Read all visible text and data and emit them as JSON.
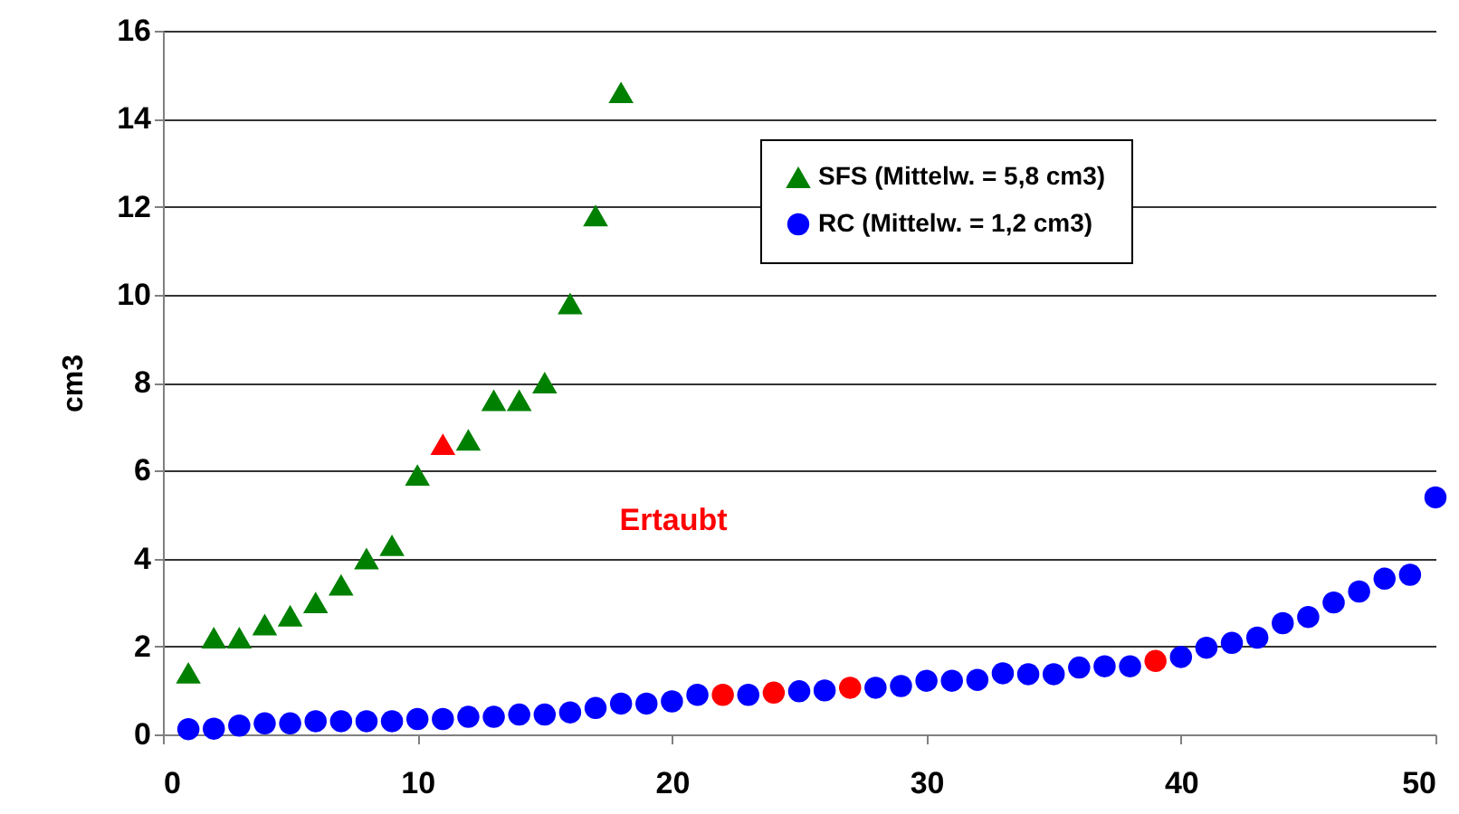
{
  "chart_data": {
    "type": "scatter",
    "ylabel": "cm3",
    "xlim": [
      0,
      50
    ],
    "xticks": [
      0,
      10,
      20,
      30,
      40,
      50
    ],
    "ylim": [
      0,
      16
    ],
    "yticks": [
      0,
      2,
      4,
      6,
      8,
      10,
      12,
      14,
      16
    ],
    "grid": "y",
    "legend": "top right",
    "annotations": [
      "Ertaubt"
    ],
    "series": [
      {
        "name": "SFS (Mittelw. = 5,8 cm3)",
        "color": "#008000",
        "marker": "triangle",
        "x": [
          1,
          2,
          3,
          4,
          5,
          6,
          7,
          8,
          9,
          10,
          11,
          12,
          13,
          14,
          15,
          16,
          17,
          18
        ],
        "values": [
          1.4,
          2.2,
          2.2,
          2.5,
          2.7,
          3.0,
          3.4,
          4.0,
          4.3,
          5.9,
          6.6,
          6.7,
          7.6,
          7.6,
          8.0,
          9.8,
          11.8,
          14.6
        ],
        "colors": [
          "#008000",
          "#008000",
          "#008000",
          "#008000",
          "#008000",
          "#008000",
          "#008000",
          "#008000",
          "#008000",
          "#008000",
          "#ff0000",
          "#008000",
          "#008000",
          "#008000",
          "#008000",
          "#008000",
          "#008000",
          "#008000"
        ]
      },
      {
        "name": "RC (Mittelw. = 1,2 cm3)",
        "color": "#0000ff",
        "marker": "circle",
        "x": [
          1,
          2,
          3,
          4,
          5,
          6,
          7,
          8,
          9,
          10,
          11,
          12,
          13,
          14,
          15,
          16,
          17,
          18,
          19,
          20,
          21,
          22,
          23,
          24,
          25,
          26,
          27,
          28,
          29,
          30,
          31,
          32,
          33,
          34,
          35,
          36,
          37,
          38,
          39,
          40,
          41,
          42,
          43,
          44,
          45,
          46,
          47,
          48,
          49,
          50
        ],
        "values": [
          0.12,
          0.13,
          0.2,
          0.25,
          0.25,
          0.3,
          0.3,
          0.3,
          0.3,
          0.35,
          0.35,
          0.4,
          0.4,
          0.45,
          0.45,
          0.5,
          0.6,
          0.7,
          0.7,
          0.75,
          0.9,
          0.9,
          0.9,
          0.95,
          0.98,
          1.0,
          1.06,
          1.06,
          1.1,
          1.22,
          1.22,
          1.24,
          1.39,
          1.37,
          1.37,
          1.52,
          1.55,
          1.55,
          1.67,
          1.76,
          1.97,
          2.08,
          2.2,
          2.53,
          2.67,
          3.0,
          3.25,
          3.54,
          3.63,
          5.39
        ],
        "colors": [
          "#0000ff",
          "#0000ff",
          "#0000ff",
          "#0000ff",
          "#0000ff",
          "#0000ff",
          "#0000ff",
          "#0000ff",
          "#0000ff",
          "#0000ff",
          "#0000ff",
          "#0000ff",
          "#0000ff",
          "#0000ff",
          "#0000ff",
          "#0000ff",
          "#0000ff",
          "#0000ff",
          "#0000ff",
          "#0000ff",
          "#0000ff",
          "#ff0000",
          "#0000ff",
          "#ff0000",
          "#0000ff",
          "#0000ff",
          "#ff0000",
          "#0000ff",
          "#0000ff",
          "#0000ff",
          "#0000ff",
          "#0000ff",
          "#0000ff",
          "#0000ff",
          "#0000ff",
          "#0000ff",
          "#0000ff",
          "#0000ff",
          "#ff0000",
          "#0000ff",
          "#0000ff",
          "#0000ff",
          "#0000ff",
          "#0000ff",
          "#0000ff",
          "#0000ff",
          "#0000ff",
          "#0000ff",
          "#0000ff",
          "#0000ff"
        ]
      }
    ]
  }
}
